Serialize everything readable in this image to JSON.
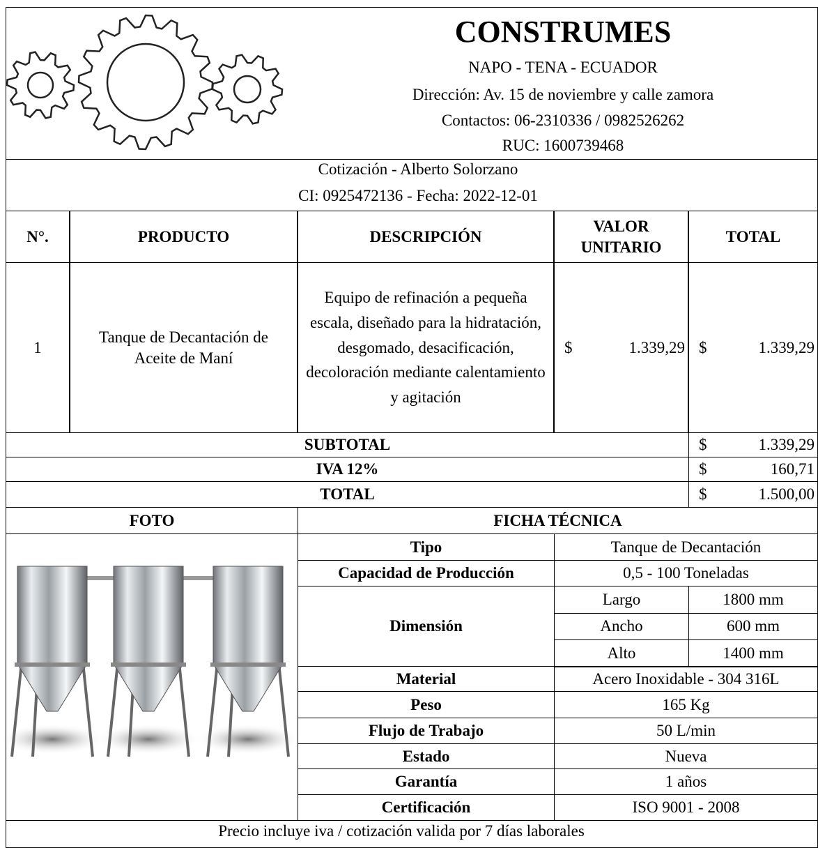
{
  "header": {
    "title": "CONSTRUMES",
    "lines": [
      "NAPO - TENA - ECUADOR",
      "Dirección:  Av. 15 de noviembre y calle zamora",
      "Contactos: 06-2310336 / 0982526262",
      "RUC: 1600739468"
    ]
  },
  "client": {
    "lines": [
      "Cotización - Alberto Solorzano",
      "CI: 0925472136 - Fecha: 2022-12-01"
    ]
  },
  "table": {
    "columns": [
      "N°.",
      "PRODUCTO",
      "DESCRIPCIÓN",
      "VALOR UNITARIO",
      "TOTAL"
    ],
    "rows": [
      {
        "number": "1",
        "product": "Tanque de Decantación de Aceite de Maní",
        "description": "Equipo de refinación a pequeña escala, diseñado para la hidratación, desgomado, desacificación, decoloración mediante calentamiento y agitación",
        "unit_currency": "$",
        "unit_price": "1.339,29",
        "total_currency": "$",
        "total": "1.339,29"
      }
    ]
  },
  "totals": [
    {
      "label": "SUBTOTAL",
      "currency": "$",
      "amount": "1.339,29"
    },
    {
      "label": "IVA 12%",
      "currency": "$",
      "amount": "160,71"
    },
    {
      "label": "TOTAL",
      "currency": "$",
      "amount": "1.500,00"
    }
  ],
  "spec": {
    "photo_title": "FOTO",
    "title": "FICHA TÉCNICA",
    "rows": [
      {
        "label": "Tipo",
        "value": "Tanque de Decantación"
      },
      {
        "label": "Capacidad de Producción",
        "value": "0,5 - 100 Toneladas"
      },
      {
        "label": "Dimensión",
        "parts": [
          {
            "label": "Largo",
            "value": "1800 mm"
          },
          {
            "label": "Ancho",
            "value": "600 mm"
          },
          {
            "label": "Alto",
            "value": "1400 mm"
          }
        ]
      },
      {
        "label": "Material",
        "value": "Acero Inoxidable - 304 316L"
      },
      {
        "label": "Peso",
        "value": "165 Kg"
      },
      {
        "label": "Flujo de Trabajo",
        "value": "50 L/min"
      },
      {
        "label": "Estado",
        "value": "Nueva"
      },
      {
        "label": "Garantía",
        "value": "1 años"
      },
      {
        "label": "Certificación",
        "value": "ISO 9001 - 2008"
      }
    ]
  },
  "footer": "Precio incluye iva / cotización valida por 7 días laborales"
}
